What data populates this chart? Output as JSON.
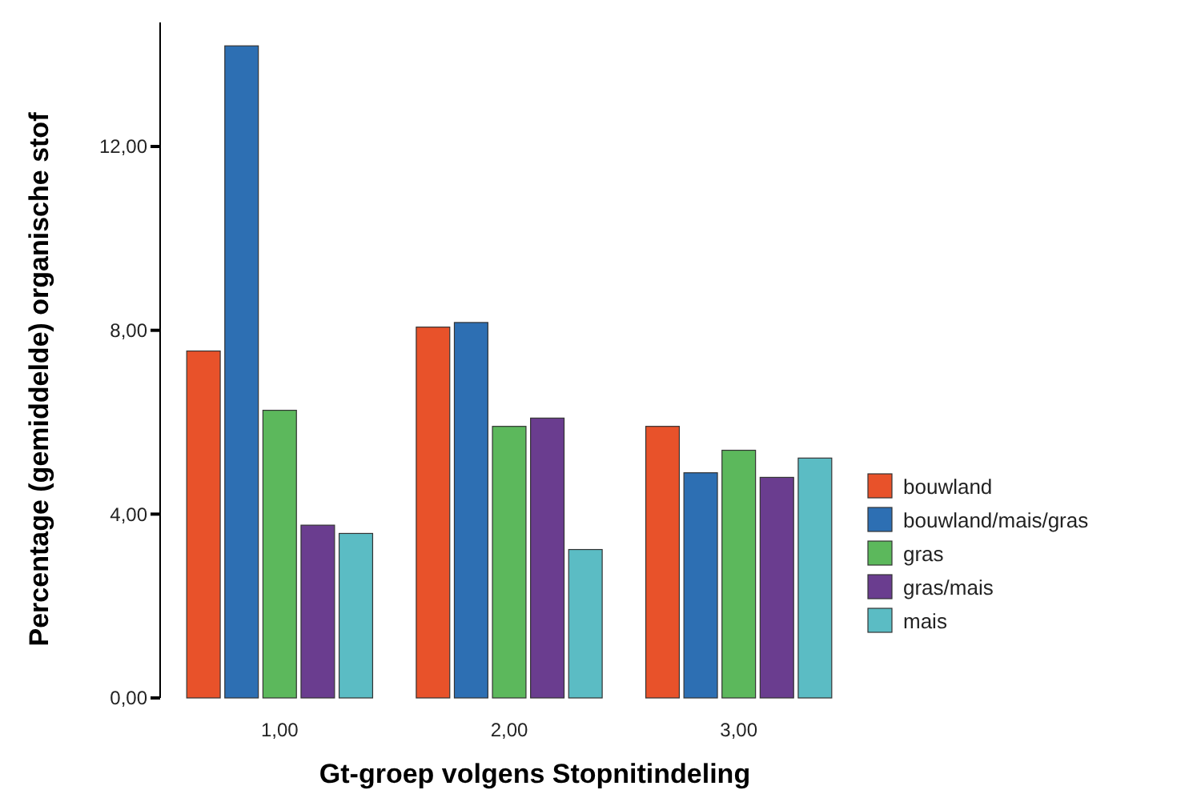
{
  "chart_data": {
    "type": "bar",
    "xlabel": "Gt-groep volgens Stopnitindeling",
    "ylabel": "Percentage (gemiddelde) organische stof",
    "categories": [
      "1,00",
      "2,00",
      "3,00"
    ],
    "series": [
      {
        "name": "bouwland",
        "color": "#e8522a",
        "values": [
          7.55,
          8.07,
          5.91
        ]
      },
      {
        "name": "bouwland/mais/gras",
        "color": "#2d6fb3",
        "values": [
          14.19,
          8.17,
          4.9
        ]
      },
      {
        "name": "gras",
        "color": "#5cb85c",
        "values": [
          6.26,
          5.91,
          5.39
        ]
      },
      {
        "name": "gras/mais",
        "color": "#6a3d8f",
        "values": [
          3.76,
          6.09,
          4.8
        ]
      },
      {
        "name": "mais",
        "color": "#5bbcc4",
        "values": [
          3.58,
          3.23,
          5.22
        ]
      }
    ],
    "ylim": [
      0,
      14.7
    ],
    "yticks": [
      {
        "value": 0,
        "label": "0,00"
      },
      {
        "value": 4,
        "label": "4,00"
      },
      {
        "value": 8,
        "label": "8,00"
      },
      {
        "value": 12,
        "label": "12,00"
      }
    ],
    "grid": false,
    "legend": "right"
  }
}
